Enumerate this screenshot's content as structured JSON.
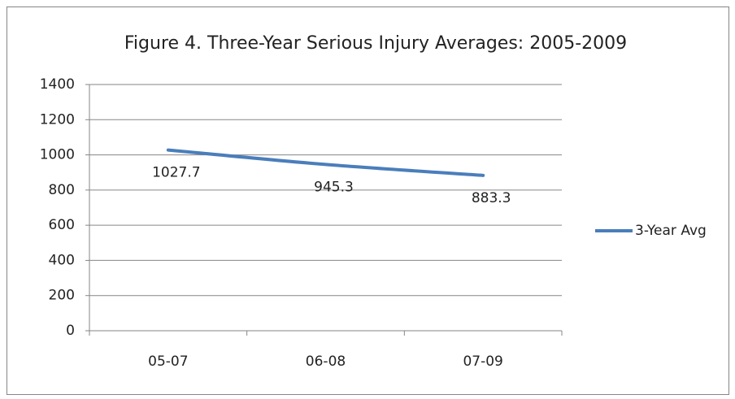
{
  "chart_data": {
    "type": "line",
    "title": "Figure 4.  Three-Year Serious Injury Averages: 2005-2009",
    "categories": [
      "05-07",
      "06-08",
      "07-09"
    ],
    "series": [
      {
        "name": "3-Year Avg",
        "color": "#4a7ebb",
        "values": [
          1027.7,
          945.3,
          883.3
        ]
      }
    ],
    "ylim": [
      0,
      1400
    ],
    "yticks": [
      0,
      200,
      400,
      600,
      800,
      1000,
      1200,
      1400
    ],
    "grid": true,
    "legend": "right"
  }
}
